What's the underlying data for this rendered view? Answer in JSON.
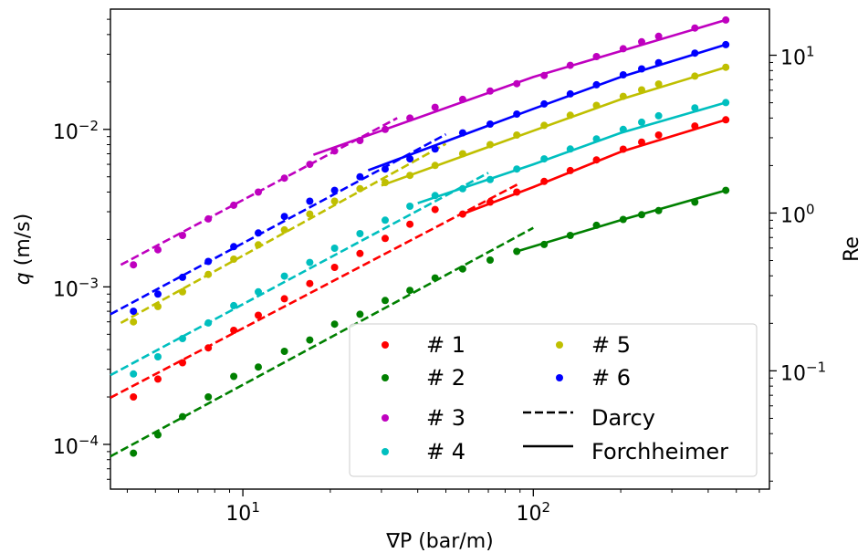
{
  "chart_data": {
    "type": "scatter",
    "x_scale": "log",
    "y_scale": "log",
    "xlim": [
      3.5,
      650
    ],
    "ylim": [
      5.2e-05,
      0.058
    ],
    "y2lim": [
      0.0178,
      19.6
    ],
    "xlabel": "∇P (bar/m)",
    "ylabel_italic": "q",
    "ylabel_unit": " (m/s)",
    "y2label": "Re",
    "x_ticks": [
      {
        "value": 10,
        "base": "10",
        "exp": "1"
      },
      {
        "value": 100,
        "base": "10",
        "exp": "2"
      }
    ],
    "y_ticks": [
      {
        "value": 0.0001,
        "base": "10",
        "exp": "−4"
      },
      {
        "value": 0.001,
        "base": "10",
        "exp": "−3"
      },
      {
        "value": 0.01,
        "base": "10",
        "exp": "−2"
      }
    ],
    "y2_ticks": [
      {
        "value": 0.1,
        "base": "10",
        "exp": "−1"
      },
      {
        "value": 1,
        "base": "10",
        "exp": "0"
      },
      {
        "value": 10,
        "base": "10",
        "exp": "1"
      }
    ],
    "grid": false,
    "legend_position": "lower-right",
    "legend_columns": 2,
    "series": [
      {
        "name": "# 1",
        "color": "#ff0000",
        "points": [
          [
            4.2,
            0.0002
          ],
          [
            5.1,
            0.00026
          ],
          [
            6.2,
            0.00033
          ],
          [
            7.6,
            0.00041
          ],
          [
            9.3,
            0.00053
          ],
          [
            11.3,
            0.00066
          ],
          [
            13.9,
            0.00084
          ],
          [
            17.0,
            0.00105
          ],
          [
            20.7,
            0.00133
          ],
          [
            25.3,
            0.00163
          ],
          [
            30.9,
            0.00203
          ],
          [
            37.6,
            0.0025
          ],
          [
            45.9,
            0.0031
          ],
          [
            57.1,
            0.0029
          ],
          [
            71.0,
            0.00345
          ],
          [
            87.7,
            0.004
          ],
          [
            109,
            0.00467
          ],
          [
            134,
            0.00548
          ],
          [
            165,
            0.0064
          ],
          [
            204,
            0.00748
          ],
          [
            236,
            0.0083
          ],
          [
            270,
            0.0092
          ],
          [
            360,
            0.0105
          ],
          [
            460,
            0.0115
          ]
        ],
        "darcy": [
          [
            3.5,
            0.000198
          ],
          [
            90,
            0.00456
          ]
        ],
        "forch": [
          [
            57,
            0.0029
          ],
          [
            100,
            0.0043
          ],
          [
            200,
            0.0072
          ],
          [
            460,
            0.0115
          ]
        ]
      },
      {
        "name": "# 2",
        "color": "#008000",
        "points": [
          [
            4.2,
            8.8e-05
          ],
          [
            5.1,
            0.000115
          ],
          [
            6.2,
            0.00015
          ],
          [
            7.6,
            0.0002
          ],
          [
            9.3,
            0.00027
          ],
          [
            11.3,
            0.00031
          ],
          [
            13.9,
            0.00039
          ],
          [
            17.0,
            0.00046
          ],
          [
            20.7,
            0.00058
          ],
          [
            25.3,
            0.00067
          ],
          [
            30.9,
            0.00082
          ],
          [
            37.6,
            0.00095
          ],
          [
            45.9,
            0.00114
          ],
          [
            57.1,
            0.0013
          ],
          [
            71.0,
            0.00148
          ],
          [
            87.7,
            0.00168
          ],
          [
            109,
            0.00186
          ],
          [
            134,
            0.00212
          ],
          [
            165,
            0.00246
          ],
          [
            204,
            0.00268
          ],
          [
            236,
            0.00287
          ],
          [
            270,
            0.00305
          ],
          [
            360,
            0.00345
          ],
          [
            460,
            0.0041
          ]
        ],
        "darcy": [
          [
            3.5,
            8.4e-05
          ],
          [
            100,
            0.00237
          ]
        ],
        "forch": [
          [
            87.7,
            0.00168
          ],
          [
            200,
            0.00265
          ],
          [
            460,
            0.0041
          ]
        ]
      },
      {
        "name": "# 3",
        "color": "#bf00bf",
        "points": [
          [
            4.2,
            0.00138
          ],
          [
            5.1,
            0.00172
          ],
          [
            6.2,
            0.00212
          ],
          [
            7.6,
            0.0027
          ],
          [
            9.3,
            0.0033
          ],
          [
            11.3,
            0.004
          ],
          [
            13.9,
            0.0049
          ],
          [
            17.0,
            0.006
          ],
          [
            20.7,
            0.0073
          ],
          [
            25.3,
            0.0085
          ],
          [
            30.9,
            0.01
          ],
          [
            37.6,
            0.0118
          ],
          [
            45.9,
            0.0138
          ],
          [
            57.1,
            0.0155
          ],
          [
            71.0,
            0.0175
          ],
          [
            87.7,
            0.0195
          ],
          [
            109,
            0.022
          ],
          [
            134,
            0.0255
          ],
          [
            165,
            0.029
          ],
          [
            204,
            0.0325
          ],
          [
            236,
            0.036
          ],
          [
            270,
            0.039
          ],
          [
            360,
            0.044
          ],
          [
            460,
            0.0495
          ]
        ],
        "darcy": [
          [
            3.8,
            0.00138
          ],
          [
            34,
            0.0118
          ]
        ],
        "forch": [
          [
            17.5,
            0.0069
          ],
          [
            100,
            0.0215
          ],
          [
            460,
            0.0495
          ]
        ]
      },
      {
        "name": "# 4",
        "color": "#00bfbf",
        "points": [
          [
            4.2,
            0.00028
          ],
          [
            5.1,
            0.00036
          ],
          [
            6.2,
            0.00047
          ],
          [
            7.6,
            0.00059
          ],
          [
            9.3,
            0.00076
          ],
          [
            11.3,
            0.00093
          ],
          [
            13.9,
            0.00117
          ],
          [
            17.0,
            0.00143
          ],
          [
            20.7,
            0.00176
          ],
          [
            25.3,
            0.00218
          ],
          [
            30.9,
            0.00265
          ],
          [
            37.6,
            0.00325
          ],
          [
            45.9,
            0.0038
          ],
          [
            57.1,
            0.0042
          ],
          [
            71.0,
            0.0048
          ],
          [
            87.7,
            0.0056
          ],
          [
            109,
            0.0065
          ],
          [
            134,
            0.0075
          ],
          [
            165,
            0.0087
          ],
          [
            204,
            0.01
          ],
          [
            236,
            0.0111
          ],
          [
            270,
            0.0122
          ],
          [
            360,
            0.0137
          ],
          [
            460,
            0.0148
          ]
        ],
        "darcy": [
          [
            3.5,
            0.000275
          ],
          [
            70,
            0.0053
          ]
        ],
        "forch": [
          [
            40,
            0.0034
          ],
          [
            100,
            0.006
          ],
          [
            200,
            0.0095
          ],
          [
            460,
            0.0148
          ]
        ]
      },
      {
        "name": "# 5",
        "color": "#bfbf00",
        "points": [
          [
            4.2,
            0.0006
          ],
          [
            5.1,
            0.00075
          ],
          [
            6.2,
            0.00093
          ],
          [
            7.6,
            0.0012
          ],
          [
            9.3,
            0.0015
          ],
          [
            11.3,
            0.00185
          ],
          [
            13.9,
            0.0023
          ],
          [
            17.0,
            0.0029
          ],
          [
            20.7,
            0.0035
          ],
          [
            25.3,
            0.0042
          ],
          [
            30.9,
            0.0046
          ],
          [
            37.6,
            0.0051
          ],
          [
            45.9,
            0.0059
          ],
          [
            57.1,
            0.007
          ],
          [
            71.0,
            0.008
          ],
          [
            87.7,
            0.0092
          ],
          [
            109,
            0.0106
          ],
          [
            134,
            0.0123
          ],
          [
            165,
            0.0142
          ],
          [
            204,
            0.0162
          ],
          [
            236,
            0.0178
          ],
          [
            270,
            0.0194
          ],
          [
            360,
            0.0218
          ],
          [
            460,
            0.0248
          ]
        ],
        "darcy": [
          [
            3.8,
            0.00059
          ],
          [
            50,
            0.0081
          ]
        ],
        "forch": [
          [
            30,
            0.0044
          ],
          [
            100,
            0.0098
          ],
          [
            200,
            0.0155
          ],
          [
            460,
            0.0248
          ]
        ]
      },
      {
        "name": "# 6",
        "color": "#0000ff",
        "points": [
          [
            4.2,
            0.0007
          ],
          [
            5.1,
            0.0009
          ],
          [
            6.2,
            0.00115
          ],
          [
            7.6,
            0.00145
          ],
          [
            9.3,
            0.0018
          ],
          [
            11.3,
            0.0022
          ],
          [
            13.9,
            0.0028
          ],
          [
            17.0,
            0.0035
          ],
          [
            20.7,
            0.0041
          ],
          [
            25.3,
            0.005
          ],
          [
            30.9,
            0.0056
          ],
          [
            37.6,
            0.0065
          ],
          [
            45.9,
            0.0075
          ],
          [
            57.1,
            0.0095
          ],
          [
            71.0,
            0.0108
          ],
          [
            87.7,
            0.0125
          ],
          [
            109,
            0.0145
          ],
          [
            134,
            0.0168
          ],
          [
            165,
            0.0192
          ],
          [
            204,
            0.0222
          ],
          [
            236,
            0.0242
          ],
          [
            270,
            0.0265
          ],
          [
            360,
            0.0305
          ],
          [
            460,
            0.0345
          ]
        ],
        "darcy": [
          [
            3.5,
            0.00067
          ],
          [
            50,
            0.0093
          ]
        ],
        "forch": [
          [
            27,
            0.0055
          ],
          [
            100,
            0.0135
          ],
          [
            200,
            0.0215
          ],
          [
            460,
            0.0345
          ]
        ]
      }
    ],
    "line_styles": [
      {
        "name": "Darcy",
        "style": "dashed"
      },
      {
        "name": "Forchheimer",
        "style": "solid"
      }
    ]
  }
}
